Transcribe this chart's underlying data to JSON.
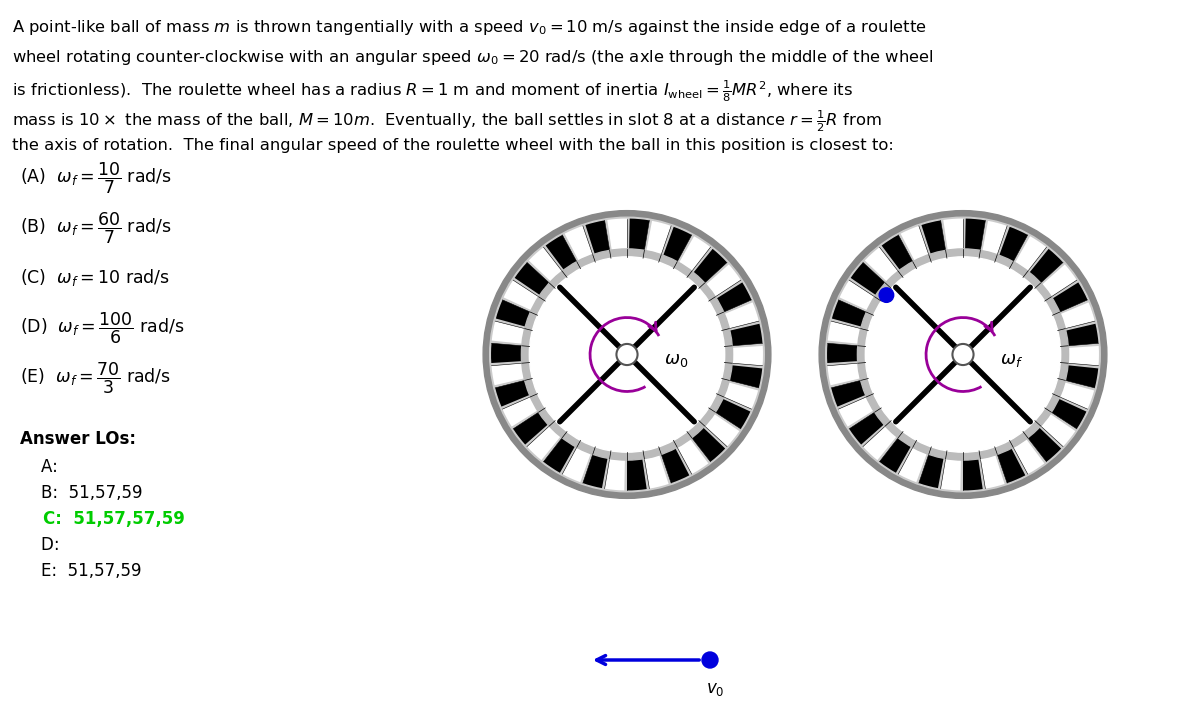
{
  "bg_color": "#ffffff",
  "text_color": "#000000",
  "highlight_color": "#00cc00",
  "spin_arrow_color": "#990099",
  "ball_color": "#0000dd",
  "arrow_color": "#0000dd",
  "n_slots": 38,
  "spoke_angles_deg": [
    45,
    135,
    225,
    315
  ],
  "choices": [
    "(A)  $\\omega_f = \\dfrac{10}{7}$ rad/s",
    "(B)  $\\omega_f = \\dfrac{60}{7}$ rad/s",
    "(C)  $\\omega_f = 10$ rad/s",
    "(D)  $\\omega_f = \\dfrac{100}{6}$ rad/s",
    "(E)  $\\omega_f = \\dfrac{70}{3}$ rad/s"
  ],
  "lo_title": "Answer LOs:",
  "lo_entries": [
    "    A:",
    "    B:  51,57,59",
    "    C:  51,57,57,59",
    "    D:",
    "    E:  51,57,59"
  ],
  "lo_correct_idx": 2,
  "problem_lines": [
    "A point-like ball of mass $m$ is thrown tangentially with a speed $v_0 = 10$ m/s against the inside edge of a roulette",
    "wheel rotating counter-clockwise with an angular speed $\\omega_0 = 20$ rad/s (the axle through the middle of the wheel",
    "is frictionless).  The roulette wheel has a radius $R = 1$ m and moment of inertia $I_{\\mathrm{wheel}} = \\frac{1}{8}MR^2$, where its",
    "mass is $10\\times$ the mass of the ball, $M = 10m$.  Eventually, the ball settles in slot 8 at a distance $r = \\frac{1}{2}R$ from",
    "the axis of rotation.  The final angular speed of the roulette wheel with the ball in this position is closest to:"
  ]
}
